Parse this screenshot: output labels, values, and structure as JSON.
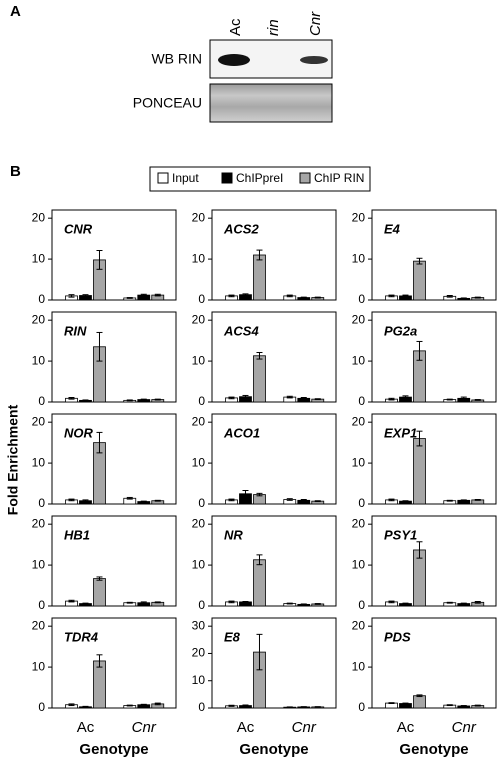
{
  "panel_a": {
    "label": "A",
    "lanes": [
      "Ac",
      "rin",
      "Cnr"
    ],
    "rows": [
      "WB RIN",
      "PONCEAU"
    ]
  },
  "panel_b": {
    "label": "B",
    "y_label": "Fold Enrichment",
    "legend": [
      {
        "name": "Input",
        "color": "#ffffff"
      },
      {
        "name": "ChIPpreI",
        "color": "#000000"
      },
      {
        "name": "ChIP RIN",
        "color": "#a6a6a6"
      }
    ]
  },
  "chart_data": [
    {
      "type": "bar",
      "title": "CNR",
      "categories": [
        null,
        null
      ],
      "ylim": [
        0,
        22
      ],
      "yticks": [
        0,
        10,
        20
      ],
      "series": [
        {
          "values": [
            1,
            0.5
          ],
          "errors": [
            0.3,
            0.1
          ]
        },
        {
          "values": [
            1.1,
            1.2
          ],
          "errors": [
            0.2,
            0.2
          ]
        },
        {
          "values": [
            9.8,
            1.2
          ],
          "errors": [
            2.3,
            0.2
          ]
        }
      ]
    },
    {
      "type": "bar",
      "title": "ACS2",
      "categories": [
        null,
        null
      ],
      "ylim": [
        0,
        22
      ],
      "yticks": [
        0,
        10,
        20
      ],
      "series": [
        {
          "values": [
            1,
            1
          ],
          "errors": [
            0.2,
            0.2
          ]
        },
        {
          "values": [
            1.3,
            0.6
          ],
          "errors": [
            0.2,
            0.1
          ]
        },
        {
          "values": [
            11,
            0.6
          ],
          "errors": [
            1.2,
            0.1
          ]
        }
      ]
    },
    {
      "type": "bar",
      "title": "E4",
      "categories": [
        null,
        null
      ],
      "ylim": [
        0,
        22
      ],
      "yticks": [
        0,
        10,
        20
      ],
      "series": [
        {
          "values": [
            1,
            0.9
          ],
          "errors": [
            0.2,
            0.2
          ]
        },
        {
          "values": [
            1,
            0.4
          ],
          "errors": [
            0.2,
            0.1
          ]
        },
        {
          "values": [
            9.5,
            0.6
          ],
          "errors": [
            0.7,
            0.1
          ]
        }
      ]
    },
    {
      "type": "bar",
      "title": "RIN",
      "categories": [
        null,
        null
      ],
      "ylim": [
        0,
        22
      ],
      "yticks": [
        0,
        10,
        20
      ],
      "series": [
        {
          "values": [
            0.9,
            0.4
          ],
          "errors": [
            0.2,
            0.1
          ]
        },
        {
          "values": [
            0.4,
            0.6
          ],
          "errors": [
            0.1,
            0.1
          ]
        },
        {
          "values": [
            13.5,
            0.6
          ],
          "errors": [
            3.5,
            0.1
          ]
        }
      ]
    },
    {
      "type": "bar",
      "title": "ACS4",
      "categories": [
        null,
        null
      ],
      "ylim": [
        0,
        22
      ],
      "yticks": [
        0,
        10,
        20
      ],
      "series": [
        {
          "values": [
            1,
            1.2
          ],
          "errors": [
            0.2,
            0.2
          ]
        },
        {
          "values": [
            1.3,
            0.9
          ],
          "errors": [
            0.3,
            0.2
          ]
        },
        {
          "values": [
            11.3,
            0.7
          ],
          "errors": [
            0.8,
            0.1
          ]
        }
      ]
    },
    {
      "type": "bar",
      "title": "PG2a",
      "categories": [
        null,
        null
      ],
      "ylim": [
        0,
        22
      ],
      "yticks": [
        0,
        10,
        20
      ],
      "series": [
        {
          "values": [
            0.7,
            0.6
          ],
          "errors": [
            0.2,
            0.1
          ]
        },
        {
          "values": [
            1.2,
            0.9
          ],
          "errors": [
            0.3,
            0.3
          ]
        },
        {
          "values": [
            12.5,
            0.5
          ],
          "errors": [
            2.3,
            0.1
          ]
        }
      ]
    },
    {
      "type": "bar",
      "title": "NOR",
      "categories": [
        null,
        null
      ],
      "ylim": [
        0,
        22
      ],
      "yticks": [
        0,
        10,
        20
      ],
      "series": [
        {
          "values": [
            1,
            1.4
          ],
          "errors": [
            0.2,
            0.2
          ]
        },
        {
          "values": [
            0.8,
            0.6
          ],
          "errors": [
            0.2,
            0.1
          ]
        },
        {
          "values": [
            15,
            0.8
          ],
          "errors": [
            2.5,
            0.1
          ]
        }
      ]
    },
    {
      "type": "bar",
      "title": "ACO1",
      "categories": [
        null,
        null
      ],
      "ylim": [
        0,
        22
      ],
      "yticks": [
        0,
        10,
        20
      ],
      "series": [
        {
          "values": [
            1,
            1.1
          ],
          "errors": [
            0.2,
            0.2
          ]
        },
        {
          "values": [
            2.5,
            0.9
          ],
          "errors": [
            0.8,
            0.2
          ]
        },
        {
          "values": [
            2.3,
            0.7
          ],
          "errors": [
            0.3,
            0.1
          ]
        }
      ]
    },
    {
      "type": "bar",
      "title": "EXP1",
      "categories": [
        null,
        null
      ],
      "ylim": [
        0,
        22
      ],
      "yticks": [
        0,
        10,
        20
      ],
      "series": [
        {
          "values": [
            1,
            0.8
          ],
          "errors": [
            0.2,
            0.1
          ]
        },
        {
          "values": [
            0.7,
            0.9
          ],
          "errors": [
            0.1,
            0.1
          ]
        },
        {
          "values": [
            16,
            1
          ],
          "errors": [
            1.8,
            0.1
          ]
        }
      ]
    },
    {
      "type": "bar",
      "title": "HB1",
      "categories": [
        null,
        null
      ],
      "ylim": [
        0,
        22
      ],
      "yticks": [
        0,
        10,
        20
      ],
      "series": [
        {
          "values": [
            1.2,
            0.8
          ],
          "errors": [
            0.2,
            0.1
          ]
        },
        {
          "values": [
            0.6,
            0.8
          ],
          "errors": [
            0.1,
            0.2
          ]
        },
        {
          "values": [
            6.7,
            0.9
          ],
          "errors": [
            0.4,
            0.1
          ]
        }
      ]
    },
    {
      "type": "bar",
      "title": "NR",
      "categories": [
        null,
        null
      ],
      "ylim": [
        0,
        22
      ],
      "yticks": [
        0,
        10,
        20
      ],
      "series": [
        {
          "values": [
            1,
            0.6
          ],
          "errors": [
            0.2,
            0.1
          ]
        },
        {
          "values": [
            1,
            0.4
          ],
          "errors": [
            0.1,
            0.1
          ]
        },
        {
          "values": [
            11.3,
            0.5
          ],
          "errors": [
            1.2,
            0.1
          ]
        }
      ]
    },
    {
      "type": "bar",
      "title": "PSY1",
      "categories": [
        null,
        null
      ],
      "ylim": [
        0,
        22
      ],
      "yticks": [
        0,
        10,
        20
      ],
      "series": [
        {
          "values": [
            1,
            0.8
          ],
          "errors": [
            0.2,
            0.1
          ]
        },
        {
          "values": [
            0.6,
            0.6
          ],
          "errors": [
            0.1,
            0.1
          ]
        },
        {
          "values": [
            13.7,
            0.9
          ],
          "errors": [
            2,
            0.2
          ]
        }
      ]
    },
    {
      "type": "bar",
      "title": "TDR4",
      "categories": [
        "Ac",
        "Cnr"
      ],
      "x_label": "Genotype",
      "ylim": [
        0,
        22
      ],
      "yticks": [
        0,
        10,
        20
      ],
      "series": [
        {
          "values": [
            0.8,
            0.6
          ],
          "errors": [
            0.2,
            0.1
          ]
        },
        {
          "values": [
            0.3,
            0.8
          ],
          "errors": [
            0.1,
            0.1
          ]
        },
        {
          "values": [
            11.5,
            1
          ],
          "errors": [
            1.5,
            0.2
          ]
        }
      ]
    },
    {
      "type": "bar",
      "title": "E8",
      "categories": [
        "Ac",
        "Cnr"
      ],
      "x_label": "Genotype",
      "ylim": [
        0,
        33
      ],
      "yticks": [
        0,
        10,
        20,
        30
      ],
      "series": [
        {
          "values": [
            0.8,
            0.3
          ],
          "errors": [
            0.2,
            0.1
          ]
        },
        {
          "values": [
            0.9,
            0.4
          ],
          "errors": [
            0.2,
            0.1
          ]
        },
        {
          "values": [
            20.5,
            0.4
          ],
          "errors": [
            6.5,
            0.1
          ]
        }
      ]
    },
    {
      "type": "bar",
      "title": "PDS",
      "categories": [
        "Ac",
        "Cnr"
      ],
      "x_label": "Genotype",
      "ylim": [
        0,
        22
      ],
      "yticks": [
        0,
        10,
        20
      ],
      "series": [
        {
          "values": [
            1.2,
            0.7
          ],
          "errors": [
            0.1,
            0.1
          ]
        },
        {
          "values": [
            1.1,
            0.5
          ],
          "errors": [
            0.1,
            0.1
          ]
        },
        {
          "values": [
            3,
            0.6
          ],
          "errors": [
            0.2,
            0.1
          ]
        }
      ]
    }
  ]
}
